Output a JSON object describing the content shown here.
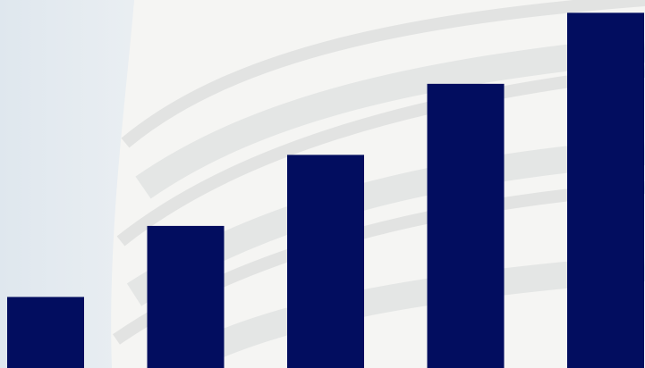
{
  "chart_data": {
    "type": "bar",
    "categories": [
      null,
      null,
      null,
      null,
      null
    ],
    "values": [
      1,
      2,
      3,
      4,
      5
    ],
    "color": "#020d5f",
    "ylim": [
      0,
      5.18
    ]
  }
}
